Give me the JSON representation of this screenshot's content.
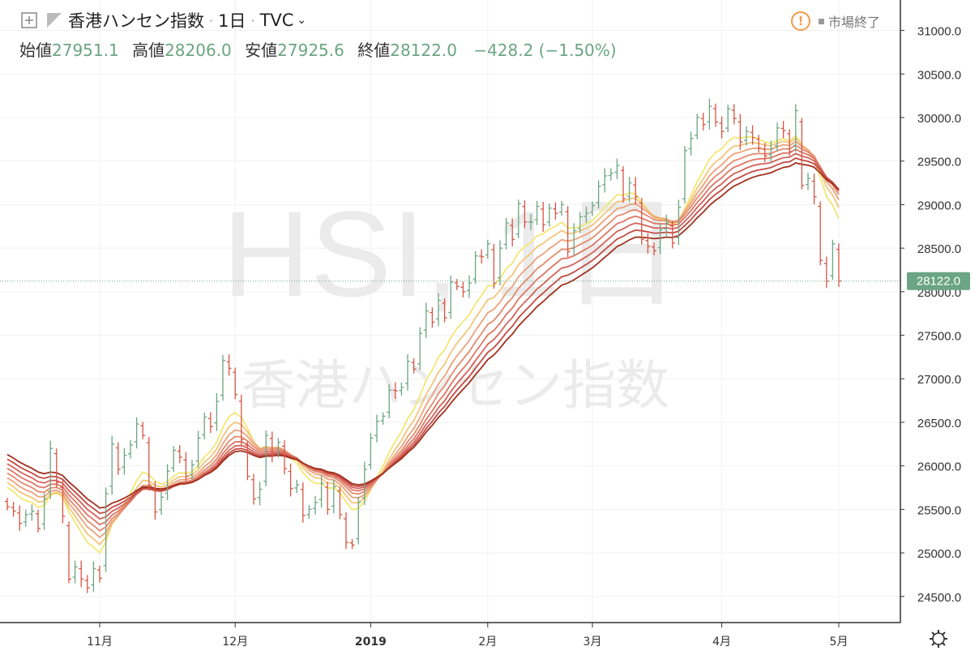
{
  "header": {
    "symbol": "香港ハンセン指数",
    "interval": "1日",
    "source": "TVC",
    "ohlc": {
      "open_label": "始値",
      "open": "27951.1",
      "high_label": "高値",
      "high": "28206.0",
      "low_label": "安値",
      "low": "27925.6",
      "close_label": "終値",
      "close": "28122.0",
      "change": "−428.2 (−1.50%)"
    },
    "status": "市場終了"
  },
  "watermark": {
    "ticker": "HSI, 1日",
    "name": "香港ハンセン指数"
  },
  "colors": {
    "up": "#6ba583",
    "down": "#d75442",
    "axis_line": "#333333",
    "price_label_bg": "#6ba583",
    "ribbon": [
      "#f3e774",
      "#f5c47a",
      "#eba27a",
      "#e4896d",
      "#de7563",
      "#d4625a",
      "#c24a43",
      "#a1311f"
    ]
  },
  "chart_data": {
    "type": "ohlc",
    "y_axis": {
      "min": 24200,
      "max": 31350,
      "ticks": [
        "24500.0",
        "25000.0",
        "25500.0",
        "26000.0",
        "26500.0",
        "27000.0",
        "27500.0",
        "28000.0",
        "28500.0",
        "29000.0",
        "29500.0",
        "30000.0",
        "30500.0",
        "31000.0"
      ]
    },
    "x_axis": {
      "labels": [
        "11月",
        "12月",
        "2019",
        "2月",
        "3月",
        "4月",
        "5月"
      ],
      "label_bars": [
        15,
        37,
        59,
        78,
        95,
        116,
        135
      ]
    },
    "last_price": "28122.0",
    "closes": [
      25530,
      25480,
      25340,
      25440,
      25480,
      25280,
      25620,
      26200,
      25810,
      25420,
      24700,
      24840,
      24700,
      24600,
      24820,
      24710,
      25680,
      26250,
      25960,
      26120,
      26240,
      26480,
      26350,
      25780,
      25470,
      25640,
      25940,
      26180,
      26100,
      25880,
      26010,
      26320,
      26560,
      26450,
      26740,
      27210,
      27120,
      26820,
      26300,
      25880,
      25620,
      25730,
      26350,
      26120,
      26270,
      25970,
      25740,
      25780,
      25430,
      25500,
      25580,
      25800,
      25500,
      25760,
      25440,
      25120,
      25090,
      25580,
      25960,
      26320,
      26510,
      26570,
      26870,
      26860,
      26900,
      27200,
      27110,
      27520,
      27780,
      27650,
      27900,
      27700,
      28110,
      28060,
      28000,
      28100,
      28410,
      28400,
      28550,
      28100,
      28500,
      28790,
      28600,
      29010,
      28800,
      28800,
      28980,
      28770,
      28960,
      28900,
      29000,
      28460,
      28700,
      28860,
      28900,
      28990,
      29210,
      29330,
      29360,
      29450,
      29070,
      29250,
      29090,
      28600,
      28520,
      28470,
      28710,
      28790,
      28560,
      28970,
      29620,
      29760,
      30000,
      29920,
      30130,
      29950,
      29840,
      30100,
      29990,
      29720,
      29840,
      29770,
      29650,
      29560,
      29640,
      29880,
      29850,
      29610,
      30080,
      29220,
      29300,
      29090,
      28360,
      28120,
      28550,
      28122
    ]
  }
}
